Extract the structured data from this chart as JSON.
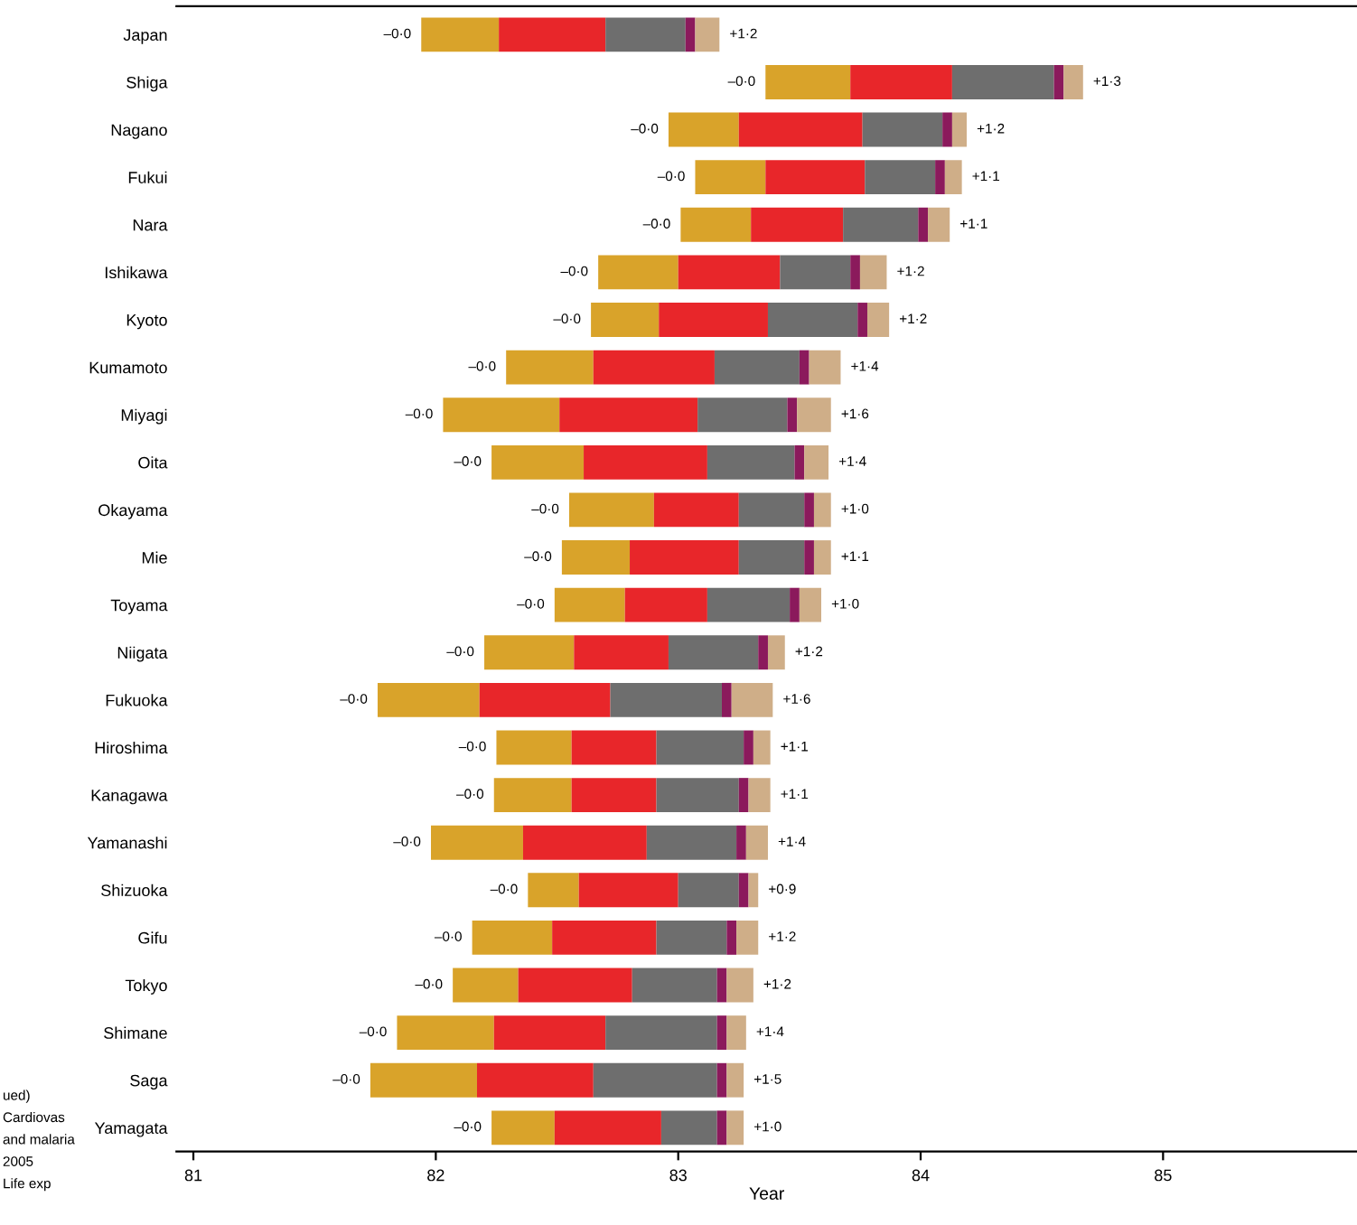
{
  "chart_data": {
    "type": "bar",
    "orientation": "horizontal",
    "xlabel": "Year",
    "categories": [
      "Japan",
      "Shiga",
      "Nagano",
      "Fukui",
      "Nara",
      "Ishikawa",
      "Kyoto",
      "Kumamoto",
      "Miyagi",
      "Oita",
      "Okayama",
      "Mie",
      "Toyama",
      "Niigata",
      "Fukuoka",
      "Hiroshima",
      "Kanagawa",
      "Yamanashi",
      "Shizuoka",
      "Gifu",
      "Tokyo",
      "Shimane",
      "Saga",
      "Yamagata"
    ],
    "series": [
      {
        "color": "#d9a32a",
        "base": [
          81.94,
          83.36,
          82.96,
          83.07,
          83.01,
          82.67,
          82.64,
          82.29,
          82.03,
          82.23,
          82.55,
          82.52,
          82.49,
          82.2,
          81.76,
          82.25,
          82.24,
          81.98,
          82.38,
          82.15,
          82.07,
          81.84,
          81.73,
          82.23
        ],
        "values": [
          0.32,
          0.35,
          0.29,
          0.29,
          0.29,
          0.33,
          0.28,
          0.36,
          0.48,
          0.38,
          0.35,
          0.28,
          0.29,
          0.37,
          0.42,
          0.31,
          0.32,
          0.38,
          0.21,
          0.33,
          0.27,
          0.4,
          0.44,
          0.26
        ]
      },
      {
        "color": "#e8262a",
        "base": [
          82.26,
          83.71,
          83.25,
          83.36,
          83.3,
          83.0,
          82.92,
          82.65,
          82.51,
          82.61,
          82.9,
          82.8,
          82.78,
          82.57,
          82.18,
          82.56,
          82.56,
          82.36,
          82.59,
          82.48,
          82.34,
          82.24,
          82.17,
          82.49
        ],
        "values": [
          0.44,
          0.42,
          0.51,
          0.41,
          0.38,
          0.42,
          0.45,
          0.5,
          0.57,
          0.51,
          0.35,
          0.45,
          0.34,
          0.39,
          0.54,
          0.35,
          0.35,
          0.51,
          0.41,
          0.43,
          0.47,
          0.46,
          0.48,
          0.44
        ]
      },
      {
        "color": "#6e6e6e",
        "base": [
          82.7,
          84.13,
          83.76,
          83.77,
          83.68,
          83.42,
          83.37,
          83.15,
          83.08,
          83.12,
          83.25,
          83.25,
          83.12,
          82.96,
          82.72,
          82.91,
          82.91,
          82.87,
          83.0,
          82.91,
          82.81,
          82.7,
          82.65,
          82.93
        ],
        "values": [
          0.33,
          0.42,
          0.33,
          0.29,
          0.31,
          0.29,
          0.37,
          0.35,
          0.37,
          0.36,
          0.27,
          0.27,
          0.34,
          0.37,
          0.46,
          0.36,
          0.34,
          0.37,
          0.25,
          0.29,
          0.35,
          0.46,
          0.51,
          0.23
        ]
      },
      {
        "color": "#8b1a5c",
        "base": [
          83.03,
          84.55,
          84.09,
          84.06,
          83.99,
          83.71,
          83.74,
          83.5,
          83.45,
          83.48,
          83.52,
          83.52,
          83.46,
          83.33,
          83.18,
          83.27,
          83.25,
          83.24,
          83.25,
          83.2,
          83.16,
          83.16,
          83.16,
          83.16
        ],
        "values": [
          0.04,
          0.04,
          0.04,
          0.04,
          0.04,
          0.04,
          0.04,
          0.04,
          0.04,
          0.04,
          0.04,
          0.04,
          0.04,
          0.04,
          0.04,
          0.04,
          0.04,
          0.04,
          0.04,
          0.04,
          0.04,
          0.04,
          0.04,
          0.04
        ]
      },
      {
        "color": "#cfae88",
        "base": [
          83.07,
          84.59,
          84.13,
          84.1,
          84.03,
          83.75,
          83.78,
          83.54,
          83.49,
          83.52,
          83.56,
          83.56,
          83.5,
          83.37,
          83.22,
          83.31,
          83.29,
          83.28,
          83.29,
          83.24,
          83.2,
          83.2,
          83.2,
          83.2
        ],
        "values": [
          0.1,
          0.08,
          0.06,
          0.07,
          0.09,
          0.11,
          0.09,
          0.13,
          0.14,
          0.1,
          0.07,
          0.07,
          0.09,
          0.07,
          0.17,
          0.07,
          0.09,
          0.09,
          0.04,
          0.09,
          0.11,
          0.08,
          0.07,
          0.07
        ]
      }
    ],
    "xlim": [
      80.93,
      85.8
    ],
    "xticks": [
      81,
      82,
      83,
      84,
      85
    ],
    "grid": false,
    "annotations": [
      "–0·0",
      "+1·2",
      "–0·0",
      "+1·3",
      "–0·0",
      "+1·2",
      "–0·0",
      "+1·1",
      "–0·0",
      "+1·1",
      "–0·0",
      "+1·2",
      "–0·0",
      "+1·2",
      "–0·0",
      "+1·4",
      "–0·0",
      "+1·6",
      "–0·0",
      "+1·4",
      "–0·0",
      "+1·0",
      "–0·0",
      "+1·1",
      "–0·0",
      "+1·0",
      "–0·0",
      "+1·2",
      "–0·0",
      "+1·6",
      "–0·0",
      "+1·1",
      "–0·0",
      "+1·1",
      "–0·0",
      "+1·4",
      "–0·0",
      "+0·9",
      "–0·0",
      "+1·2",
      "–0·0",
      "+1·2",
      "–0·0",
      "+1·4",
      "–0·0",
      "+1·5",
      "–0·0",
      "+1·0",
      "ued)",
      "Cardiovas",
      "and malaria",
      "2005",
      "Life exp"
    ]
  }
}
